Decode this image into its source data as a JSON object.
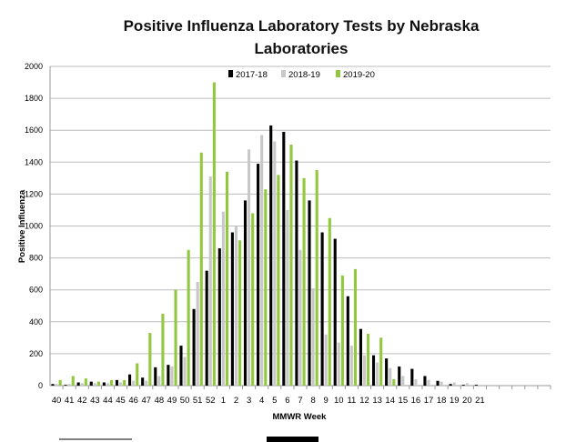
{
  "chart_data": {
    "type": "bar",
    "title_lines": [
      "Positive Influenza Laboratory Tests by Nebraska",
      "Laboratories"
    ],
    "xlabel": "MMWR Week",
    "ylabel": "Positive Influenza",
    "ylim": [
      0,
      2000
    ],
    "yticks": [
      0,
      200,
      400,
      600,
      800,
      1000,
      1200,
      1400,
      1600,
      1800,
      2000
    ],
    "grid": true,
    "legend_position": "top-center",
    "categories": [
      "40",
      "41",
      "42",
      "43",
      "44",
      "45",
      "46",
      "47",
      "48",
      "49",
      "50",
      "51",
      "52",
      "1",
      "2",
      "3",
      "4",
      "5",
      "6",
      "7",
      "8",
      "9",
      "10",
      "11",
      "12",
      "13",
      "14",
      "15",
      "16",
      "17",
      "18",
      "19",
      "20",
      "21",
      "",
      "",
      "",
      "",
      ""
    ],
    "series": [
      {
        "name": "2017-18",
        "color": "#000000",
        "values": [
          10,
          5,
          20,
          25,
          20,
          35,
          70,
          50,
          115,
          130,
          250,
          480,
          720,
          860,
          960,
          1160,
          1390,
          1630,
          1590,
          1410,
          1160,
          960,
          920,
          560,
          355,
          190,
          170,
          120,
          105,
          60,
          30,
          10,
          5,
          5,
          0,
          0,
          0,
          0,
          0
        ]
      },
      {
        "name": "2018-19",
        "color": "#c8c8c8",
        "values": [
          10,
          10,
          15,
          15,
          15,
          20,
          30,
          30,
          60,
          120,
          180,
          650,
          1310,
          1090,
          1000,
          1480,
          1570,
          1530,
          1100,
          850,
          610,
          320,
          270,
          250,
          190,
          145,
          110,
          60,
          40,
          35,
          25,
          20,
          15,
          5,
          5,
          5,
          5,
          5,
          5
        ]
      },
      {
        "name": "2019-20",
        "color": "#92c83e",
        "values": [
          35,
          60,
          45,
          25,
          35,
          35,
          140,
          330,
          450,
          600,
          850,
          1460,
          1900,
          1340,
          910,
          1080,
          1230,
          1320,
          1510,
          1300,
          1350,
          1050,
          690,
          730,
          325,
          300,
          40,
          0,
          0,
          0,
          0,
          0,
          0,
          0,
          0,
          0,
          0,
          0,
          0
        ]
      }
    ]
  }
}
